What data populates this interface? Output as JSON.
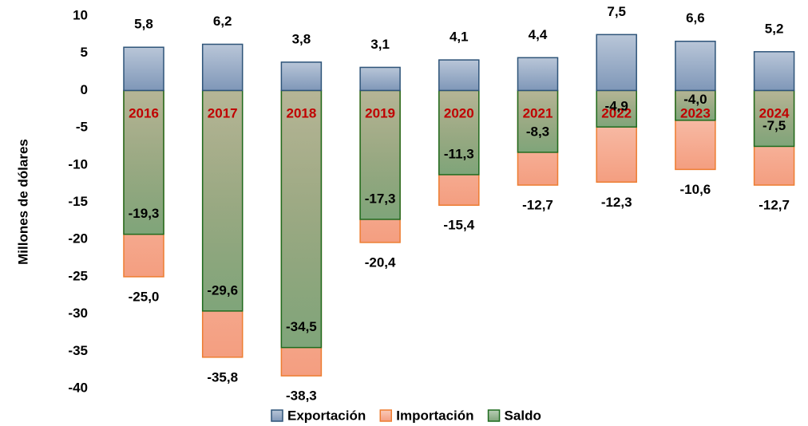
{
  "chart_data": {
    "type": "bar",
    "y_label": "Millones de dólares",
    "categories": [
      "2016",
      "2017",
      "2018",
      "2019",
      "2020",
      "2021",
      "2022",
      "2023",
      "2024"
    ],
    "category_color": "#c00000",
    "series": [
      {
        "name": "Exportación",
        "color": "#7f97b8",
        "border": "#2e5479",
        "values": [
          5.8,
          6.2,
          3.8,
          3.1,
          4.1,
          4.4,
          7.5,
          6.6,
          5.2
        ],
        "value_labels": [
          "5,8",
          "6,2",
          "3,8",
          "3,1",
          "4,1",
          "4,4",
          "7,5",
          "6,6",
          "5,2"
        ]
      },
      {
        "name": "Importación",
        "color": "#f49e80",
        "border": "#ed7d31",
        "values": [
          -25.0,
          -35.8,
          -38.3,
          -20.4,
          -15.4,
          -12.7,
          -12.3,
          -10.6,
          -12.7
        ],
        "value_labels": [
          "-25,0",
          "-35,8",
          "-38,3",
          "-20,4",
          "-15,4",
          "-12,7",
          "-12,3",
          "-10,6",
          "-12,7"
        ]
      },
      {
        "name": "Saldo",
        "color": "#7fa57a",
        "border": "#1e6b1e",
        "values": [
          -19.3,
          -29.6,
          -34.5,
          -17.3,
          -11.3,
          -8.3,
          -4.9,
          -4.0,
          -7.5
        ],
        "value_labels": [
          "-19,3",
          "-29,6",
          "-34,5",
          "-17,3",
          "-11,3",
          "-8,3",
          "-4,9",
          "-4,0",
          "-7,5"
        ]
      }
    ],
    "ylim": [
      -40,
      10
    ],
    "yticks": [
      10,
      5,
      0,
      -5,
      -10,
      -15,
      -20,
      -25,
      -30,
      -35,
      -40
    ],
    "grid": false,
    "legend": "bottom"
  }
}
